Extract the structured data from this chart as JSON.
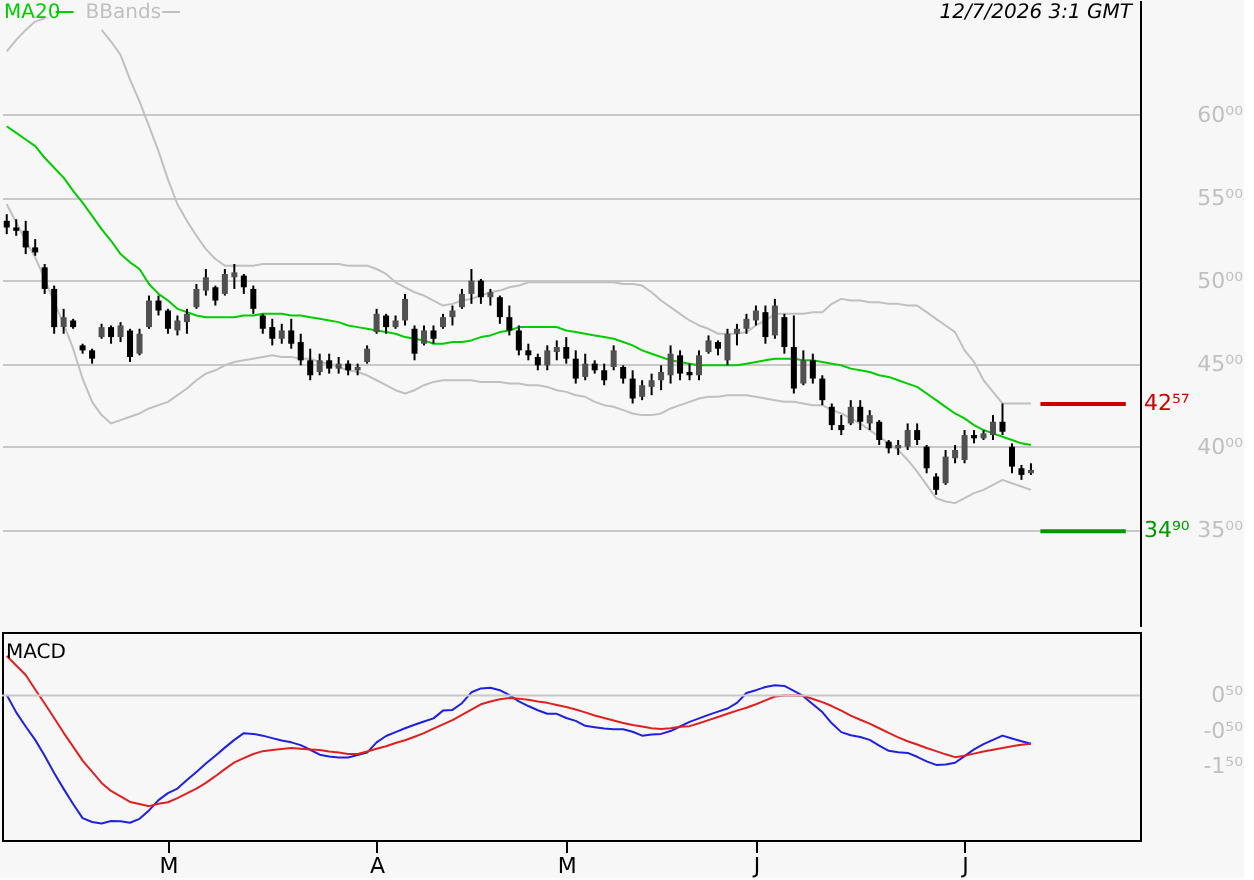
{
  "chart_data": [
    {
      "type": "candlestick",
      "categories": [
        null,
        null,
        null,
        null,
        null,
        null,
        null,
        null,
        null,
        null,
        null,
        null,
        null,
        null,
        null,
        null,
        null,
        null,
        null,
        null,
        null,
        null,
        null,
        null,
        null,
        null,
        null,
        null,
        null,
        null,
        null,
        null,
        null,
        null,
        null,
        null,
        null,
        null,
        null,
        null,
        null,
        null,
        null,
        null,
        null,
        null,
        null,
        null,
        null,
        null,
        null,
        null,
        null,
        null,
        null,
        null,
        null,
        null,
        null,
        null,
        null,
        null,
        null,
        null,
        null,
        null,
        null,
        null,
        null,
        null,
        null,
        null,
        null,
        null,
        null,
        null,
        null,
        null,
        null,
        null,
        null,
        null,
        null,
        null,
        null,
        null,
        null,
        null,
        null,
        null,
        null,
        null,
        null,
        null,
        null,
        null,
        null,
        null,
        null,
        null,
        null,
        null,
        null,
        null,
        null,
        null,
        null,
        null,
        null,
        null,
        null,
        null,
        null,
        null,
        null,
        null,
        null,
        null,
        null,
        null
      ],
      "ohlc": [
        [
          53.6,
          54.0,
          52.8,
          53.2
        ],
        [
          53.2,
          53.7,
          52.7,
          53.0
        ],
        [
          53.0,
          53.6,
          51.6,
          52.0
        ],
        [
          52.0,
          52.5,
          51.5,
          51.7
        ],
        [
          50.8,
          51.0,
          49.2,
          49.5
        ],
        [
          49.5,
          49.7,
          46.8,
          47.2
        ],
        [
          47.2,
          48.3,
          46.8,
          47.8
        ],
        [
          47.6,
          47.7,
          47.1,
          47.2
        ],
        [
          46.1,
          46.2,
          45.6,
          45.8
        ],
        [
          45.8,
          45.9,
          45.0,
          45.3
        ],
        [
          46.6,
          47.4,
          46.5,
          47.2
        ],
        [
          47.2,
          47.3,
          46.2,
          46.6
        ],
        [
          46.6,
          47.5,
          46.3,
          47.3
        ],
        [
          47.0,
          47.1,
          45.1,
          45.4
        ],
        [
          45.6,
          47.1,
          45.5,
          46.8
        ],
        [
          47.2,
          49.1,
          47.1,
          48.8
        ],
        [
          48.8,
          49.1,
          47.9,
          48.2
        ],
        [
          48.2,
          48.3,
          46.8,
          47.1
        ],
        [
          47.0,
          47.9,
          46.7,
          47.6
        ],
        [
          47.5,
          48.3,
          46.8,
          48.0
        ],
        [
          48.4,
          49.8,
          48.3,
          49.5
        ],
        [
          49.4,
          50.7,
          49.1,
          50.2
        ],
        [
          49.6,
          49.7,
          48.5,
          48.8
        ],
        [
          49.2,
          50.7,
          49.1,
          50.4
        ],
        [
          50.2,
          51.0,
          49.5,
          50.5
        ],
        [
          50.3,
          50.4,
          49.2,
          49.6
        ],
        [
          49.5,
          49.7,
          48.0,
          48.3
        ],
        [
          47.9,
          48.0,
          46.8,
          47.1
        ],
        [
          47.2,
          47.7,
          46.1,
          46.5
        ],
        [
          46.5,
          47.4,
          46.2,
          47.0
        ],
        [
          47.0,
          47.7,
          45.9,
          46.2
        ],
        [
          46.3,
          46.8,
          44.9,
          45.2
        ],
        [
          45.2,
          45.9,
          44.0,
          44.3
        ],
        [
          44.5,
          45.6,
          44.3,
          45.2
        ],
        [
          45.2,
          45.6,
          44.4,
          44.7
        ],
        [
          44.7,
          45.4,
          44.4,
          45.0
        ],
        [
          45.0,
          45.2,
          44.3,
          44.6
        ],
        [
          44.6,
          45.0,
          44.3,
          44.8
        ],
        [
          45.1,
          46.1,
          45.0,
          45.9
        ],
        [
          46.9,
          48.3,
          46.8,
          48.0
        ],
        [
          47.9,
          48.0,
          46.8,
          47.2
        ],
        [
          47.2,
          47.9,
          47.1,
          47.6
        ],
        [
          47.6,
          49.2,
          47.3,
          48.9
        ],
        [
          47.1,
          47.3,
          45.2,
          45.6
        ],
        [
          46.2,
          47.3,
          46.1,
          47.0
        ],
        [
          47.0,
          47.3,
          46.2,
          46.5
        ],
        [
          47.2,
          48.0,
          47.1,
          47.8
        ],
        [
          47.8,
          48.5,
          47.3,
          48.2
        ],
        [
          48.4,
          49.5,
          48.3,
          49.2
        ],
        [
          49.2,
          50.7,
          48.6,
          50.0
        ],
        [
          50.0,
          50.1,
          48.6,
          49.0
        ],
        [
          49.0,
          49.5,
          48.5,
          49.3
        ],
        [
          49.0,
          49.1,
          47.4,
          47.8
        ],
        [
          47.8,
          48.5,
          46.7,
          47.0
        ],
        [
          47.0,
          47.3,
          45.5,
          45.8
        ],
        [
          45.8,
          46.2,
          45.2,
          45.5
        ],
        [
          45.4,
          45.6,
          44.6,
          44.9
        ],
        [
          44.9,
          46.1,
          44.6,
          45.8
        ],
        [
          45.7,
          46.4,
          45.2,
          46.0
        ],
        [
          46.0,
          46.6,
          45.0,
          45.3
        ],
        [
          45.3,
          45.8,
          43.8,
          44.1
        ],
        [
          44.2,
          45.6,
          44.0,
          45.0
        ],
        [
          45.0,
          45.2,
          44.4,
          44.6
        ],
        [
          44.6,
          45.0,
          43.7,
          44.0
        ],
        [
          44.8,
          46.1,
          44.6,
          45.8
        ],
        [
          44.8,
          44.9,
          43.8,
          44.1
        ],
        [
          44.1,
          44.6,
          42.6,
          42.9
        ],
        [
          43.0,
          44.0,
          42.8,
          43.7
        ],
        [
          43.6,
          44.4,
          43.1,
          44.0
        ],
        [
          44.0,
          44.9,
          43.4,
          44.5
        ],
        [
          44.3,
          46.1,
          43.8,
          45.6
        ],
        [
          45.5,
          45.8,
          44.0,
          44.4
        ],
        [
          44.5,
          45.0,
          44.0,
          44.3
        ],
        [
          44.3,
          45.8,
          44.0,
          45.5
        ],
        [
          45.7,
          46.7,
          45.6,
          46.4
        ],
        [
          46.3,
          46.4,
          45.5,
          45.9
        ],
        [
          45.2,
          47.1,
          44.9,
          46.8
        ],
        [
          46.8,
          47.4,
          46.1,
          47.1
        ],
        [
          47.1,
          48.0,
          46.8,
          47.7
        ],
        [
          47.6,
          48.5,
          47.3,
          48.2
        ],
        [
          48.1,
          48.5,
          46.2,
          46.6
        ],
        [
          46.7,
          48.9,
          46.5,
          48.5
        ],
        [
          47.8,
          48.0,
          45.6,
          46.0
        ],
        [
          46.0,
          47.9,
          43.2,
          43.5
        ],
        [
          43.8,
          45.8,
          43.7,
          45.2
        ],
        [
          45.2,
          45.6,
          43.8,
          44.1
        ],
        [
          44.1,
          44.3,
          42.5,
          42.8
        ],
        [
          42.4,
          42.6,
          41.0,
          41.3
        ],
        [
          41.3,
          41.9,
          40.7,
          41.0
        ],
        [
          41.4,
          42.8,
          41.3,
          42.4
        ],
        [
          42.4,
          42.8,
          41.0,
          41.5
        ],
        [
          41.4,
          42.2,
          41.0,
          41.9
        ],
        [
          41.5,
          41.6,
          40.1,
          40.4
        ],
        [
          40.3,
          40.4,
          39.6,
          39.9
        ],
        [
          39.9,
          40.4,
          39.5,
          40.1
        ],
        [
          40.0,
          41.4,
          39.8,
          41.0
        ],
        [
          41.0,
          41.4,
          40.1,
          40.4
        ],
        [
          40.0,
          40.1,
          38.4,
          38.7
        ],
        [
          38.2,
          38.4,
          37.1,
          37.4
        ],
        [
          37.8,
          39.8,
          37.7,
          39.4
        ],
        [
          39.3,
          40.1,
          39.0,
          39.8
        ],
        [
          39.2,
          41.0,
          39.0,
          40.7
        ],
        [
          40.7,
          41.0,
          40.2,
          40.5
        ],
        [
          40.5,
          41.0,
          40.4,
          40.8
        ],
        [
          40.7,
          41.9,
          40.4,
          41.5
        ],
        [
          41.5,
          42.6,
          40.7,
          40.9
        ],
        [
          40.0,
          40.2,
          38.4,
          38.8
        ],
        [
          38.7,
          38.9,
          38.0,
          38.3
        ],
        [
          38.4,
          39.0,
          38.3,
          38.6
        ],
        null,
        null,
        null,
        null,
        null,
        null,
        null,
        null,
        null,
        null,
        null
      ],
      "series": [
        {
          "name": "MA20",
          "type": "line",
          "color": "#00cc00",
          "values": [
            59.3,
            58.9,
            58.5,
            58.1,
            57.4,
            56.8,
            56.2,
            55.4,
            54.7,
            53.9,
            53.1,
            52.4,
            51.6,
            51.1,
            50.7,
            49.8,
            49.2,
            48.8,
            48.3,
            48.1,
            47.9,
            47.8,
            47.8,
            47.8,
            47.8,
            47.9,
            47.9,
            48.0,
            48.0,
            48.0,
            47.9,
            47.9,
            47.8,
            47.7,
            47.6,
            47.5,
            47.3,
            47.2,
            47.1,
            47.0,
            46.9,
            46.8,
            46.6,
            46.5,
            46.4,
            46.2,
            46.2,
            46.3,
            46.3,
            46.4,
            46.6,
            46.7,
            46.9,
            47.0,
            47.2,
            47.2,
            47.2,
            47.2,
            47.2,
            47.0,
            46.9,
            46.8,
            46.7,
            46.6,
            46.5,
            46.3,
            46.1,
            45.8,
            45.6,
            45.4,
            45.2,
            45.1,
            45.0,
            44.9,
            44.9,
            44.9,
            44.9,
            44.9,
            45.0,
            45.1,
            45.2,
            45.3,
            45.3,
            45.3,
            45.2,
            45.2,
            45.1,
            45.0,
            44.9,
            44.7,
            44.6,
            44.5,
            44.3,
            44.2,
            44.0,
            43.8,
            43.6,
            43.2,
            42.8,
            42.4,
            42.0,
            41.7,
            41.3,
            41.0,
            40.8,
            40.6,
            40.4,
            40.2,
            40.1,
            null,
            null,
            null,
            null,
            null,
            null,
            null,
            null,
            null,
            null,
            null
          ]
        },
        {
          "name": "BBands",
          "type": "line",
          "color": "#c0c0c0",
          "values": [
            63.8,
            64.5,
            65.1,
            65.6,
            65.8,
            null,
            null,
            null,
            null,
            null,
            65.1,
            64.4,
            63.6,
            62.1,
            60.8,
            59.3,
            57.8,
            56.1,
            54.6,
            53.6,
            52.7,
            51.9,
            51.3,
            50.9,
            50.9,
            50.9,
            50.9,
            51.0,
            51.0,
            51.0,
            51.0,
            51.0,
            51.0,
            51.0,
            51.0,
            51.0,
            50.9,
            50.9,
            50.9,
            50.7,
            50.4,
            49.9,
            49.6,
            49.3,
            49.1,
            48.8,
            48.5,
            48.6,
            48.8,
            48.9,
            49.1,
            49.3,
            49.4,
            49.6,
            49.7,
            49.9,
            49.9,
            49.9,
            49.9,
            49.9,
            49.9,
            49.9,
            49.9,
            49.9,
            49.9,
            49.8,
            49.8,
            49.7,
            49.3,
            48.8,
            48.4,
            48.0,
            47.6,
            47.3,
            47.1,
            46.8,
            46.8,
            46.8,
            46.9,
            47.3,
            47.6,
            48.0,
            48.0,
            48.0,
            48.0,
            48.1,
            48.1,
            48.6,
            48.9,
            48.8,
            48.8,
            48.7,
            48.7,
            48.6,
            48.6,
            48.5,
            48.5,
            48.1,
            47.7,
            47.3,
            46.9,
            45.8,
            45.1,
            44.0,
            43.3,
            42.6,
            42.6,
            42.6,
            42.6,
            null,
            null,
            null,
            null,
            null,
            null,
            null,
            null,
            null,
            null,
            null
          ]
        },
        {
          "type": "line",
          "color": "#c0c0c0",
          "values": [
            54.6,
            53.5,
            52.4,
            51.4,
            50.1,
            48.7,
            47.4,
            45.9,
            44.1,
            42.7,
            41.9,
            41.4,
            41.6,
            41.8,
            42.0,
            42.3,
            42.5,
            42.7,
            43.1,
            43.5,
            44.0,
            44.4,
            44.6,
            44.9,
            45.1,
            45.2,
            45.3,
            45.4,
            45.5,
            45.4,
            45.4,
            45.3,
            45.3,
            45.1,
            45.0,
            44.8,
            44.6,
            44.5,
            44.3,
            44.0,
            43.7,
            43.4,
            43.2,
            43.4,
            43.7,
            43.9,
            44.0,
            44.0,
            44.0,
            44.0,
            43.9,
            43.9,
            43.9,
            43.8,
            43.8,
            43.7,
            43.7,
            43.6,
            43.4,
            43.3,
            43.1,
            43.0,
            42.7,
            42.5,
            42.4,
            42.2,
            42.0,
            41.9,
            41.9,
            42.0,
            42.3,
            42.5,
            42.7,
            42.9,
            43.0,
            43.0,
            43.1,
            43.1,
            43.1,
            43.0,
            42.9,
            42.8,
            42.7,
            42.7,
            42.6,
            42.5,
            42.5,
            42.2,
            42.0,
            41.7,
            41.4,
            41.0,
            40.6,
            40.2,
            39.8,
            39.2,
            38.5,
            37.7,
            36.9,
            36.7,
            36.6,
            36.9,
            37.2,
            37.4,
            37.7,
            38.0,
            37.8,
            37.6,
            37.4,
            null,
            null,
            null,
            null,
            null,
            null,
            null,
            null,
            null,
            null,
            null
          ]
        }
      ],
      "ylim": [
        29.2,
        66.9
      ],
      "yticks": [
        {
          "value": 35,
          "label": "35⁰⁰"
        },
        {
          "value": 40,
          "label": "40⁰⁰"
        },
        {
          "value": 45,
          "label": "45⁰⁰"
        },
        {
          "value": 50,
          "label": "50⁰⁰"
        },
        {
          "value": 55,
          "label": "55⁰⁰"
        },
        {
          "value": 60,
          "label": "60⁰⁰"
        }
      ],
      "ref_lines": [
        {
          "axis": "y",
          "value": 42.57,
          "label": "42⁵⁷",
          "color": "#cc0000"
        },
        {
          "axis": "y",
          "value": 34.9,
          "label": "34⁹⁰",
          "color": "#009900"
        }
      ],
      "grid": "y",
      "legend": "top left",
      "tick_labels": "y",
      "annotations": [
        "12/7/2026 3:1 GMT"
      ]
    },
    {
      "type": "line",
      "title": "MACD",
      "categories": [
        null,
        null,
        null,
        null,
        null,
        null,
        null,
        null,
        null,
        null,
        null,
        null,
        null,
        null,
        null,
        null,
        null,
        "M",
        null,
        null,
        null,
        null,
        null,
        null,
        null,
        null,
        null,
        null,
        null,
        null,
        null,
        null,
        null,
        null,
        null,
        null,
        null,
        null,
        null,
        "A",
        null,
        null,
        null,
        null,
        null,
        null,
        null,
        null,
        null,
        null,
        null,
        null,
        null,
        null,
        null,
        null,
        null,
        null,
        null,
        "M",
        null,
        null,
        null,
        null,
        null,
        null,
        null,
        null,
        null,
        null,
        null,
        null,
        null,
        null,
        null,
        null,
        null,
        null,
        null,
        "J",
        null,
        null,
        null,
        null,
        null,
        null,
        null,
        null,
        null,
        null,
        null,
        null,
        null,
        null,
        null,
        null,
        null,
        null,
        null,
        null,
        null,
        "J",
        null,
        null,
        null,
        null,
        null,
        null,
        null,
        null,
        null,
        null,
        null,
        null,
        null,
        null,
        null,
        null,
        null,
        null
      ],
      "series": [
        {
          "type": "line",
          "color": "#2020e0",
          "values": [
            0.51,
            0.02,
            -0.38,
            -0.76,
            -1.21,
            -1.7,
            -2.15,
            -2.58,
            -2.98,
            -3.09,
            -3.13,
            -3.06,
            -3.07,
            -3.11,
            -3.0,
            -2.76,
            -2.47,
            -2.27,
            -2.14,
            -1.9,
            -1.67,
            -1.43,
            -1.21,
            -0.98,
            -0.76,
            -0.57,
            -0.59,
            -0.64,
            -0.71,
            -0.78,
            -0.83,
            -0.91,
            -1.04,
            -1.18,
            -1.23,
            -1.26,
            -1.26,
            -1.19,
            -1.12,
            -0.83,
            -0.65,
            -0.54,
            -0.43,
            -0.33,
            -0.24,
            -0.15,
            0.07,
            0.09,
            0.28,
            0.59,
            0.7,
            0.72,
            0.65,
            0.51,
            0.33,
            0.2,
            0.08,
            -0.02,
            -0.02,
            -0.14,
            -0.22,
            -0.36,
            -0.4,
            -0.44,
            -0.46,
            -0.46,
            -0.53,
            -0.64,
            -0.61,
            -0.59,
            -0.51,
            -0.38,
            -0.25,
            -0.15,
            -0.05,
            0.04,
            0.13,
            0.29,
            0.57,
            0.65,
            0.74,
            0.79,
            0.77,
            0.63,
            0.48,
            0.25,
            0.03,
            -0.29,
            -0.54,
            -0.63,
            -0.68,
            -0.76,
            -0.92,
            -1.07,
            -1.11,
            -1.13,
            -1.24,
            -1.37,
            -1.47,
            -1.46,
            -1.41,
            -1.22,
            -1.03,
            -0.88,
            -0.76,
            -0.64,
            -0.72,
            -0.8,
            -0.87,
            null,
            null,
            null,
            null,
            null,
            null,
            null,
            null,
            null,
            null,
            null
          ]
        },
        {
          "type": "line",
          "color": "#e02020",
          "values": [
            1.62,
            1.35,
            1.08,
            0.67,
            0.27,
            -0.14,
            -0.56,
            -0.95,
            -1.35,
            -1.66,
            -1.98,
            -2.21,
            -2.36,
            -2.52,
            -2.58,
            -2.64,
            -2.57,
            -2.53,
            -2.41,
            -2.28,
            -2.14,
            -1.98,
            -1.79,
            -1.59,
            -1.4,
            -1.28,
            -1.16,
            -1.08,
            -1.05,
            -1.02,
            -0.99,
            -1.01,
            -1.03,
            -1.05,
            -1.09,
            -1.12,
            -1.16,
            -1.16,
            -1.09,
            -1.01,
            -0.94,
            -0.85,
            -0.77,
            -0.67,
            -0.57,
            -0.44,
            -0.32,
            -0.2,
            -0.05,
            0.1,
            0.25,
            0.33,
            0.39,
            0.43,
            0.41,
            0.38,
            0.33,
            0.29,
            0.23,
            0.17,
            0.1,
            0.02,
            -0.07,
            -0.14,
            -0.21,
            -0.28,
            -0.34,
            -0.38,
            -0.43,
            -0.45,
            -0.43,
            -0.39,
            -0.37,
            -0.29,
            -0.2,
            -0.11,
            -0.02,
            0.07,
            0.15,
            0.25,
            0.36,
            0.47,
            0.5,
            0.5,
            0.49,
            0.4,
            0.31,
            0.2,
            0.07,
            -0.07,
            -0.19,
            -0.3,
            -0.43,
            -0.56,
            -0.69,
            -0.8,
            -0.89,
            -0.99,
            -1.08,
            -1.17,
            -1.25,
            -1.21,
            -1.15,
            -1.09,
            -1.04,
            -0.99,
            -0.94,
            -0.9,
            -0.87,
            null,
            null,
            null,
            null,
            null,
            null,
            null,
            null,
            null,
            null,
            null
          ]
        }
      ],
      "ylim": [
        -3.6,
        2.3
      ],
      "yticks": [
        {
          "value": 0.5,
          "label": "0⁵⁰"
        },
        {
          "value": -0.5,
          "label": "-0⁵⁰"
        },
        {
          "value": -1.5,
          "label": "-1⁵⁰"
        }
      ],
      "ref_lines": [
        {
          "axis": "y",
          "value": 0.5,
          "color": "#c8c8c8"
        }
      ]
    }
  ]
}
